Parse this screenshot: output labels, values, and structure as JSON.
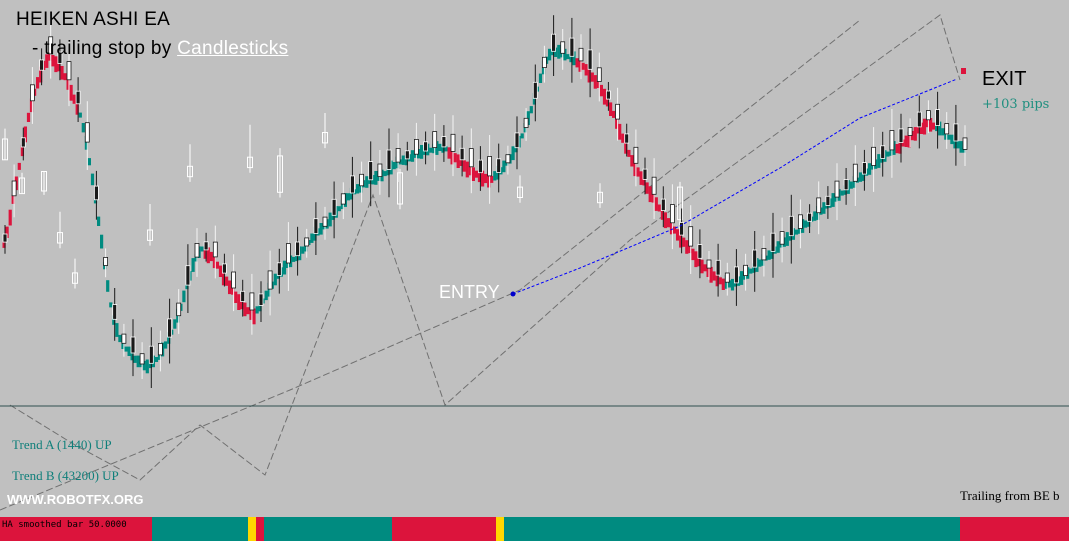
{
  "header": {
    "title": "HEIKEN ASHI EA",
    "subtitle_prefix": "- trailing stop by ",
    "subtitle_link": "Candlesticks"
  },
  "annotations": {
    "entry": "ENTRY",
    "exit": "EXIT",
    "pips": "+103 pips",
    "trend_a": "Trend A (1440) UP",
    "trend_b": "Trend B (43200) UP",
    "website": "WWW.ROBOTFX.ORG",
    "trailing": "Trailing from BE b",
    "status_label": "HA smoothed bar 50.0000"
  },
  "colors": {
    "background": "#c0c0c0",
    "bull_bar": "#008b80",
    "bear_bar": "#dc143c",
    "price_candle": "#ffffff",
    "trail_line": "#0000ff",
    "status_yellow": "#ffd700"
  },
  "chart_data": {
    "type": "candlestick",
    "ha_bars": {
      "bear_segments": [
        [
          0,
          24
        ],
        [
          66,
          82
        ],
        [
          146,
          160
        ],
        [
          188,
          236
        ],
        [
          293,
          305
        ]
      ],
      "bull_segments": [
        [
          25,
          65
        ],
        [
          83,
          145
        ],
        [
          161,
          187
        ],
        [
          237,
          292
        ]
      ],
      "values": [
        190,
        200,
        212,
        225,
        238,
        250,
        263,
        276,
        288,
        298,
        307,
        315,
        322,
        328,
        332,
        334,
        332,
        330,
        327,
        323,
        319,
        314,
        308,
        302,
        296,
        288,
        278,
        266,
        252,
        238,
        222,
        206,
        190,
        172,
        156,
        142,
        130,
        122,
        116,
        112,
        108,
        106,
        104,
        100,
        98,
        96,
        95,
        94,
        96,
        98,
        100,
        103,
        107,
        111,
        116,
        121,
        127,
        133,
        140,
        148,
        156,
        164,
        172,
        178,
        182,
        185,
        184,
        183,
        181,
        178,
        174,
        170,
        166,
        162,
        158,
        154,
        150,
        147,
        144,
        141,
        139,
        137,
        136,
        138,
        141,
        145,
        149,
        153,
        157,
        161,
        164,
        167,
        170,
        173,
        175,
        177,
        179,
        181,
        184,
        187,
        190,
        193,
        196,
        198,
        200,
        202,
        204,
        207,
        210,
        213,
        216,
        219,
        222,
        225,
        227,
        229,
        231,
        233,
        235,
        236,
        237,
        238,
        239,
        240,
        241,
        243,
        245,
        247,
        249,
        251,
        252,
        253,
        254,
        255,
        256,
        257,
        258,
        259,
        260,
        261,
        261,
        262,
        262,
        263,
        263,
        262,
        261,
        259,
        257,
        255,
        253,
        251,
        249,
        247,
        245,
        244,
        243,
        242,
        241,
        240,
        240,
        241,
        243,
        245,
        248,
        251,
        254,
        258,
        262,
        267,
        272,
        278,
        285,
        292,
        300,
        308,
        316,
        324,
        330,
        334,
        336,
        336,
        336,
        335,
        334,
        333,
        332,
        331,
        330,
        329,
        327,
        325,
        322,
        319,
        316,
        313,
        309,
        305,
        300,
        295,
        290,
        284,
        278,
        272,
        266,
        260,
        255,
        250,
        246,
        242,
        238,
        234,
        230,
        226,
        222,
        218,
        214,
        210,
        207,
        204,
        201,
        198,
        195,
        192,
        189,
        186,
        183,
        180,
        177,
        174,
        172,
        170,
        168,
        166,
        164,
        162,
        160,
        159,
        158,
        157,
        158,
        160,
        162,
        164,
        166,
        168,
        170,
        172,
        174,
        176,
        178,
        180,
        182,
        184,
        186,
        188,
        190,
        192,
        194,
        196,
        198,
        200,
        202,
        204,
        206,
        208,
        210,
        212,
        214,
        216,
        218,
        220,
        222,
        224,
        226,
        228,
        230,
        232,
        234,
        236,
        238,
        240,
        242,
        244,
        246,
        248,
        250,
        252,
        254,
        256,
        258,
        260,
        262,
        264,
        266,
        268,
        270,
        272,
        274,
        276,
        278,
        280,
        282,
        284,
        283,
        281,
        279,
        277,
        275,
        273,
        271,
        269,
        267,
        265,
        263,
        261
      ]
    },
    "price_candles": [
      [
        270,
        278,
        262,
        254
      ],
      [
        240,
        244,
        236,
        228
      ],
      [
        245,
        245,
        235,
        230
      ],
      [
        198,
        214,
        194,
        190
      ],
      [
        167,
        178,
        163,
        159
      ],
      [
        200,
        220,
        196,
        192
      ],
      [
        249,
        266,
        245,
        241
      ],
      [
        256,
        281,
        252,
        248
      ],
      [
        257,
        263,
        233,
        229
      ],
      [
        275,
        290,
        271,
        267
      ],
      [
        244,
        247,
        224,
        220
      ],
      [
        233,
        242,
        229,
        225
      ],
      [
        229,
        236,
        225,
        221
      ],
      [
        233,
        237,
        212,
        208
      ]
    ],
    "trail_line": [
      [
        513,
        294
      ],
      [
        580,
        268
      ],
      [
        680,
        226
      ],
      [
        780,
        168
      ],
      [
        860,
        118
      ],
      [
        957,
        79
      ]
    ],
    "trend_lines": [
      [
        [
          10,
          405
        ],
        [
          75,
          445
        ],
        [
          140,
          480
        ],
        [
          200,
          425
        ],
        [
          265,
          475
        ],
        [
          373,
          195
        ],
        [
          445,
          405
        ],
        [
          630,
          240
        ],
        [
          940,
          15
        ],
        [
          960,
          80
        ]
      ],
      [
        [
          0,
          510
        ],
        [
          290,
          390
        ],
        [
          520,
          290
        ],
        [
          860,
          20
        ]
      ]
    ],
    "status_bar": [
      {
        "from": 0,
        "to": 152,
        "color": "bear"
      },
      {
        "from": 152,
        "to": 248,
        "color": "bull"
      },
      {
        "from": 248,
        "to": 256,
        "color": "yellow"
      },
      {
        "from": 256,
        "to": 264,
        "color": "bear"
      },
      {
        "from": 264,
        "to": 392,
        "color": "bull"
      },
      {
        "from": 392,
        "to": 496,
        "color": "bear"
      },
      {
        "from": 496,
        "to": 504,
        "color": "yellow"
      },
      {
        "from": 504,
        "to": 960,
        "color": "bull"
      },
      {
        "from": 960,
        "to": 1069,
        "color": "bear"
      }
    ],
    "grid": false,
    "legend": "none"
  }
}
